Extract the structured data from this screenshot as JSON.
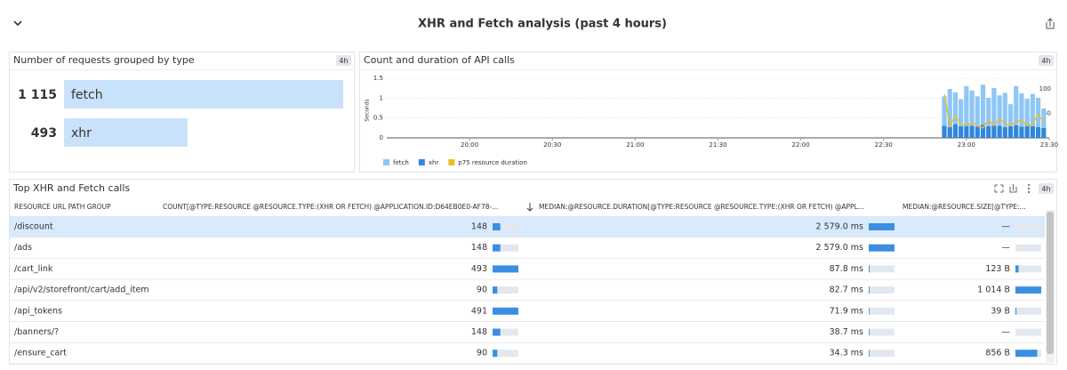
{
  "header": {
    "title": "XHR and Fetch analysis (past 4 hours)"
  },
  "chart_data": [
    {
      "type": "hbar",
      "title": "Number of requests grouped by type",
      "badge": "4h",
      "categories": [
        "fetch",
        "xhr"
      ],
      "values": [
        1115,
        493
      ],
      "value_labels": [
        "1 115",
        "493"
      ],
      "color": "#c9e2fb"
    },
    {
      "type": "bar_line",
      "title": "Count and duration of API calls",
      "badge": "4h",
      "ylabel": "Seconds",
      "x": [
        1372,
        1374,
        1376,
        1378,
        1380,
        1382,
        1384,
        1386,
        1388,
        1390,
        1392,
        1394,
        1396,
        1398,
        1400,
        1402,
        1404,
        1406,
        1408
      ],
      "xlim": [
        1170,
        1410
      ],
      "xticks": [
        {
          "value": 1200,
          "label": "20:00"
        },
        {
          "value": 1230,
          "label": "20:30"
        },
        {
          "value": 1260,
          "label": "21:00"
        },
        {
          "value": 1290,
          "label": "21:30"
        },
        {
          "value": 1320,
          "label": "22:00"
        },
        {
          "value": 1350,
          "label": "22:30"
        },
        {
          "value": 1380,
          "label": "23:00"
        },
        {
          "value": 1410,
          "label": "23:30"
        }
      ],
      "ylim": [
        0,
        1.5
      ],
      "yticks": [
        0,
        0.5,
        1,
        1.5
      ],
      "y2lim": [
        0,
        122
      ],
      "y2ticks": [
        50,
        100
      ],
      "stacked": true,
      "series": [
        {
          "name": "fetch",
          "color": "#8ec6f7",
          "axis": "y2",
          "values": [
            60,
            78,
            65,
            55,
            80,
            72,
            62,
            82,
            58,
            76,
            62,
            70,
            45,
            80,
            68,
            55,
            66,
            60,
            40
          ]
        },
        {
          "name": "xhr",
          "color": "#2f86dd",
          "axis": "y2",
          "values": [
            25,
            22,
            28,
            24,
            26,
            25,
            23,
            27,
            24,
            26,
            25,
            22,
            24,
            26,
            23,
            25,
            24,
            22,
            20
          ]
        },
        {
          "name": "p75 resource duration",
          "color": "#f0bc1f",
          "type": "line",
          "values": [
            1.1,
            0.3,
            0.55,
            0.35,
            0.3,
            0.4,
            0.3,
            0.25,
            0.45,
            0.3,
            0.5,
            0.35,
            0.3,
            0.4,
            0.45,
            0.3,
            0.35,
            0.6,
            0.4
          ]
        }
      ]
    }
  ],
  "table": {
    "title": "Top XHR and Fetch calls",
    "badge": "4h",
    "columns": [
      "RESOURCE URL PATH GROUP",
      "COUNT[@TYPE:RESOURCE @RESOURCE.TYPE:(XHR OR FETCH) @APPLICATION.ID:D64EB0E0-AF78-...",
      "MEDIAN:@RESOURCE.DURATION[@TYPE:RESOURCE @RESOURCE.TYPE:(XHR OR FETCH) @APPL...",
      "MEDIAN:@RESOURCE.SIZE[@TYPE:..."
    ],
    "rows": [
      {
        "path": "/discount",
        "count": 148,
        "duration": 2579,
        "duration_label": "2 579.0 ms",
        "size": null,
        "size_label": "—"
      },
      {
        "path": "/ads",
        "count": 148,
        "duration": 2579,
        "duration_label": "2 579.0 ms",
        "size": null,
        "size_label": "—"
      },
      {
        "path": "/cart_link",
        "count": 493,
        "duration": 87.8,
        "duration_label": "87.8 ms",
        "size": 123,
        "size_label": "123 B"
      },
      {
        "path": "/api/v2/storefront/cart/add_item",
        "count": 90,
        "duration": 82.7,
        "duration_label": "82.7 ms",
        "size": 1014,
        "size_label": "1 014 B"
      },
      {
        "path": "/api_tokens",
        "count": 491,
        "duration": 71.9,
        "duration_label": "71.9 ms",
        "size": 39,
        "size_label": "39 B"
      },
      {
        "path": "/banners/?",
        "count": 148,
        "duration": 38.7,
        "duration_label": "38.7 ms",
        "size": null,
        "size_label": "—"
      },
      {
        "path": "/ensure_cart",
        "count": 90,
        "duration": 34.3,
        "duration_label": "34.3 ms",
        "size": 856,
        "size_label": "856 B"
      }
    ]
  }
}
